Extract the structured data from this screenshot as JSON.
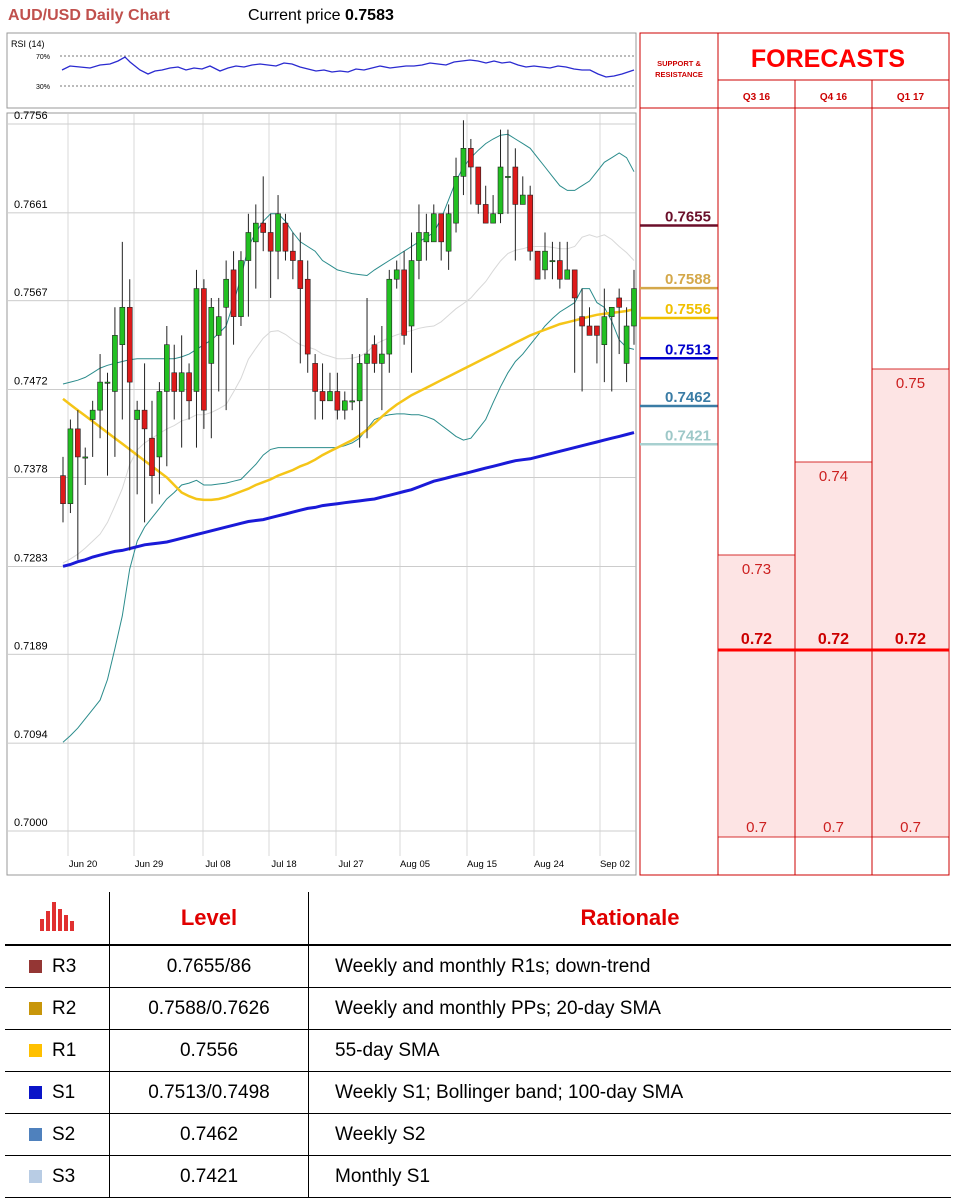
{
  "header": {
    "title": "AUD/USD Daily Chart",
    "price_label": "Current price",
    "price_value": "0.7583"
  },
  "rsi": {
    "label": "RSI (14)",
    "levels": [
      "70%",
      "30%"
    ]
  },
  "chart_data": [
    {
      "type": "candlestick",
      "title": "AUD/USD Daily Chart",
      "y_ticks": [
        "0.7756",
        "0.7661",
        "0.7567",
        "0.7472",
        "0.7378",
        "0.7283",
        "0.7189",
        "0.7094",
        "0.7000"
      ],
      "ylim": [
        0.7,
        0.7756
      ],
      "x_ticks": [
        "Jun 20",
        "Jun 29",
        "Jul 08",
        "Jul 18",
        "Jul 27",
        "Aug 05",
        "Aug 15",
        "Aug 24",
        "Sep 02"
      ],
      "candles": [
        [
          0.738,
          0.735,
          0.74,
          0.733
        ],
        [
          0.735,
          0.743,
          0.744,
          0.734
        ],
        [
          0.743,
          0.74,
          0.745,
          0.729
        ],
        [
          0.74,
          0.74,
          0.741,
          0.737
        ],
        [
          0.744,
          0.745,
          0.746,
          0.74
        ],
        [
          0.745,
          0.748,
          0.751,
          0.742
        ],
        [
          0.748,
          0.748,
          0.749,
          0.738
        ],
        [
          0.747,
          0.753,
          0.756,
          0.74
        ],
        [
          0.752,
          0.756,
          0.763,
          0.744
        ],
        [
          0.756,
          0.748,
          0.759,
          0.73
        ],
        [
          0.744,
          0.745,
          0.746,
          0.736
        ],
        [
          0.745,
          0.743,
          0.75,
          0.733
        ],
        [
          0.742,
          0.738,
          0.746,
          0.735
        ],
        [
          0.74,
          0.747,
          0.748,
          0.736
        ],
        [
          0.747,
          0.752,
          0.754,
          0.739
        ],
        [
          0.749,
          0.747,
          0.752,
          0.744
        ],
        [
          0.747,
          0.749,
          0.753,
          0.741
        ],
        [
          0.749,
          0.746,
          0.75,
          0.744
        ],
        [
          0.747,
          0.758,
          0.76,
          0.741
        ],
        [
          0.758,
          0.745,
          0.759,
          0.743
        ],
        [
          0.75,
          0.756,
          0.757,
          0.742
        ],
        [
          0.753,
          0.755,
          0.757,
          0.747
        ],
        [
          0.756,
          0.759,
          0.761,
          0.745
        ],
        [
          0.76,
          0.755,
          0.762,
          0.752
        ],
        [
          0.755,
          0.761,
          0.762,
          0.754
        ],
        [
          0.761,
          0.764,
          0.766,
          0.755
        ],
        [
          0.763,
          0.765,
          0.767,
          0.758
        ],
        [
          0.765,
          0.764,
          0.77,
          0.762
        ],
        [
          0.764,
          0.762,
          0.766,
          0.757
        ],
        [
          0.762,
          0.766,
          0.768,
          0.759
        ],
        [
          0.765,
          0.762,
          0.766,
          0.761
        ],
        [
          0.762,
          0.761,
          0.764,
          0.759
        ],
        [
          0.761,
          0.758,
          0.764,
          0.75
        ],
        [
          0.759,
          0.751,
          0.761,
          0.749
        ],
        [
          0.75,
          0.747,
          0.751,
          0.744
        ],
        [
          0.747,
          0.746,
          0.75,
          0.744
        ],
        [
          0.746,
          0.747,
          0.749,
          0.746
        ],
        [
          0.747,
          0.745,
          0.749,
          0.744
        ],
        [
          0.745,
          0.746,
          0.747,
          0.744
        ],
        [
          0.746,
          0.746,
          0.751,
          0.745
        ],
        [
          0.746,
          0.75,
          0.751,
          0.741
        ],
        [
          0.75,
          0.751,
          0.757,
          0.742
        ],
        [
          0.752,
          0.75,
          0.753,
          0.749
        ],
        [
          0.75,
          0.751,
          0.754,
          0.745
        ],
        [
          0.751,
          0.759,
          0.76,
          0.749
        ],
        [
          0.759,
          0.76,
          0.761,
          0.758
        ],
        [
          0.76,
          0.753,
          0.762,
          0.752
        ],
        [
          0.754,
          0.761,
          0.764,
          0.749
        ],
        [
          0.761,
          0.764,
          0.767,
          0.759
        ],
        [
          0.763,
          0.764,
          0.766,
          0.761
        ],
        [
          0.763,
          0.766,
          0.767,
          0.763
        ],
        [
          0.766,
          0.763,
          0.766,
          0.761
        ],
        [
          0.762,
          0.766,
          0.767,
          0.76
        ],
        [
          0.765,
          0.77,
          0.772,
          0.764
        ],
        [
          0.77,
          0.773,
          0.776,
          0.768
        ],
        [
          0.773,
          0.771,
          0.774,
          0.767
        ],
        [
          0.771,
          0.767,
          0.771,
          0.766
        ],
        [
          0.767,
          0.765,
          0.769,
          0.765
        ],
        [
          0.765,
          0.766,
          0.768,
          0.765
        ],
        [
          0.766,
          0.771,
          0.775,
          0.765
        ],
        [
          0.77,
          0.77,
          0.775,
          0.766
        ],
        [
          0.771,
          0.767,
          0.773,
          0.761
        ],
        [
          0.767,
          0.768,
          0.77,
          0.767
        ],
        [
          0.768,
          0.762,
          0.769,
          0.761
        ],
        [
          0.762,
          0.759,
          0.762,
          0.759
        ],
        [
          0.76,
          0.762,
          0.764,
          0.759
        ],
        [
          0.761,
          0.761,
          0.763,
          0.759
        ],
        [
          0.761,
          0.759,
          0.763,
          0.758
        ],
        [
          0.759,
          0.76,
          0.763,
          0.759
        ],
        [
          0.76,
          0.757,
          0.76,
          0.749
        ],
        [
          0.755,
          0.754,
          0.758,
          0.747
        ],
        [
          0.754,
          0.753,
          0.756,
          0.754
        ],
        [
          0.754,
          0.753,
          0.754,
          0.75
        ],
        [
          0.752,
          0.755,
          0.758,
          0.748
        ],
        [
          0.755,
          0.756,
          0.755,
          0.747
        ],
        [
          0.757,
          0.756,
          0.758,
          0.751
        ],
        [
          0.75,
          0.754,
          0.756,
          0.748
        ],
        [
          0.754,
          0.758,
          0.76,
          0.752
        ]
      ],
      "sma_55": [
        0.7462,
        0.7456,
        0.745,
        0.7444,
        0.7438,
        0.7432,
        0.7426,
        0.742,
        0.7414,
        0.7408,
        0.7402,
        0.7396,
        0.739,
        0.7384,
        0.7378,
        0.737,
        0.7362,
        0.7358,
        0.7355,
        0.7354,
        0.7354,
        0.7355,
        0.7357,
        0.736,
        0.7363,
        0.7366,
        0.737,
        0.7373,
        0.7376,
        0.738,
        0.7383,
        0.7386,
        0.739,
        0.7393,
        0.7397,
        0.7402,
        0.7406,
        0.741,
        0.7414,
        0.7418,
        0.7423,
        0.7429,
        0.7436,
        0.7443,
        0.745,
        0.7456,
        0.7461,
        0.7466,
        0.747,
        0.7474,
        0.7478,
        0.7482,
        0.7486,
        0.749,
        0.7494,
        0.7498,
        0.7502,
        0.7506,
        0.751,
        0.7514,
        0.7518,
        0.7522,
        0.7526,
        0.753,
        0.7533,
        0.7536,
        0.7539,
        0.7542,
        0.7544,
        0.7546,
        0.7548,
        0.755,
        0.7552,
        0.7553,
        0.7554,
        0.7555,
        0.7556,
        0.7558
      ],
      "sma_100": [
        0.7283,
        0.7285,
        0.7288,
        0.729,
        0.7293,
        0.7295,
        0.7297,
        0.7299,
        0.73,
        0.7302,
        0.7304,
        0.7306,
        0.7307,
        0.7308,
        0.7309,
        0.7311,
        0.7313,
        0.7315,
        0.7317,
        0.7319,
        0.7321,
        0.7323,
        0.7325,
        0.7327,
        0.7329,
        0.7331,
        0.7332,
        0.7333,
        0.7335,
        0.7337,
        0.7339,
        0.7341,
        0.7343,
        0.7345,
        0.7346,
        0.7348,
        0.7349,
        0.735,
        0.7351,
        0.7352,
        0.7353,
        0.7354,
        0.7355,
        0.7357,
        0.7359,
        0.7361,
        0.7363,
        0.7365,
        0.7368,
        0.7371,
        0.7374,
        0.7376,
        0.7378,
        0.738,
        0.7382,
        0.7384,
        0.7386,
        0.7388,
        0.739,
        0.7392,
        0.7394,
        0.7396,
        0.7397,
        0.7398,
        0.74,
        0.7402,
        0.7404,
        0.7406,
        0.7408,
        0.741,
        0.7412,
        0.7414,
        0.7416,
        0.7418,
        0.742,
        0.7422,
        0.7424,
        0.7426
      ]
    },
    {
      "type": "bar",
      "title": "FORECASTS",
      "categories": [
        "Q3 16",
        "Q4 16",
        "Q1 17"
      ],
      "series": [
        {
          "name": "",
          "values": [
            0.73,
            0.74,
            0.75
          ]
        },
        {
          "name": "",
          "values": [
            0.72,
            0.72,
            0.72
          ]
        },
        {
          "name": "",
          "values": [
            0.7,
            0.7,
            0.7
          ]
        }
      ]
    }
  ],
  "sr_panel": {
    "header": "SUPPORT & RESISTANCE",
    "levels": [
      {
        "value": 0.7655,
        "label": "0.7655",
        "color": "#6b0f2a",
        "text_color": "#6b0f2a"
      },
      {
        "value": 0.7588,
        "label": "0.7588",
        "color": "#d4a84a",
        "text_color": "#d4a84a"
      },
      {
        "value": 0.7556,
        "label": "0.7556",
        "color": "#f0c000",
        "text_color": "#f0c000"
      },
      {
        "value": 0.7513,
        "label": "0.7513",
        "color": "#0000cc",
        "text_color": "#0000cc"
      },
      {
        "value": 0.7462,
        "label": "0.7462",
        "color": "#3a7ca5",
        "text_color": "#3a7ca5"
      },
      {
        "value": 0.7421,
        "label": "0.7421",
        "color": "#a8d0d0",
        "text_color": "#9ec8c8"
      }
    ]
  },
  "forecast_panel": {
    "title": "FORECASTS",
    "columns": [
      "Q3 16",
      "Q4 16",
      "Q1 17"
    ],
    "high": [
      "0.73",
      "0.74",
      "0.75"
    ],
    "mid": [
      "0.72",
      "0.72",
      "0.72"
    ],
    "low": [
      "0.7",
      "0.7",
      "0.7"
    ]
  },
  "table": {
    "headers": [
      "Level",
      "Rationale"
    ],
    "rows": [
      {
        "name": "R3",
        "level": "0.7655/86",
        "rationale": "Weekly and monthly R1s; down-trend",
        "color": "#943634"
      },
      {
        "name": "R2",
        "level": "0.7588/0.7626",
        "rationale": "Weekly and monthly PPs; 20-day SMA",
        "color": "#c8960a"
      },
      {
        "name": "R1",
        "level": "0.7556",
        "rationale": "55-day SMA",
        "color": "#ffc000"
      },
      {
        "name": "S1",
        "level": "0.7513/0.7498",
        "rationale": "Weekly S1; Bollinger band; 100-day SMA",
        "color": "#0a14c8"
      },
      {
        "name": "S2",
        "level": "0.7462",
        "rationale": "Weekly S2",
        "color": "#4f81bd"
      },
      {
        "name": "S3",
        "level": "0.7421",
        "rationale": "Monthly S1",
        "color": "#b8cce4"
      }
    ]
  }
}
